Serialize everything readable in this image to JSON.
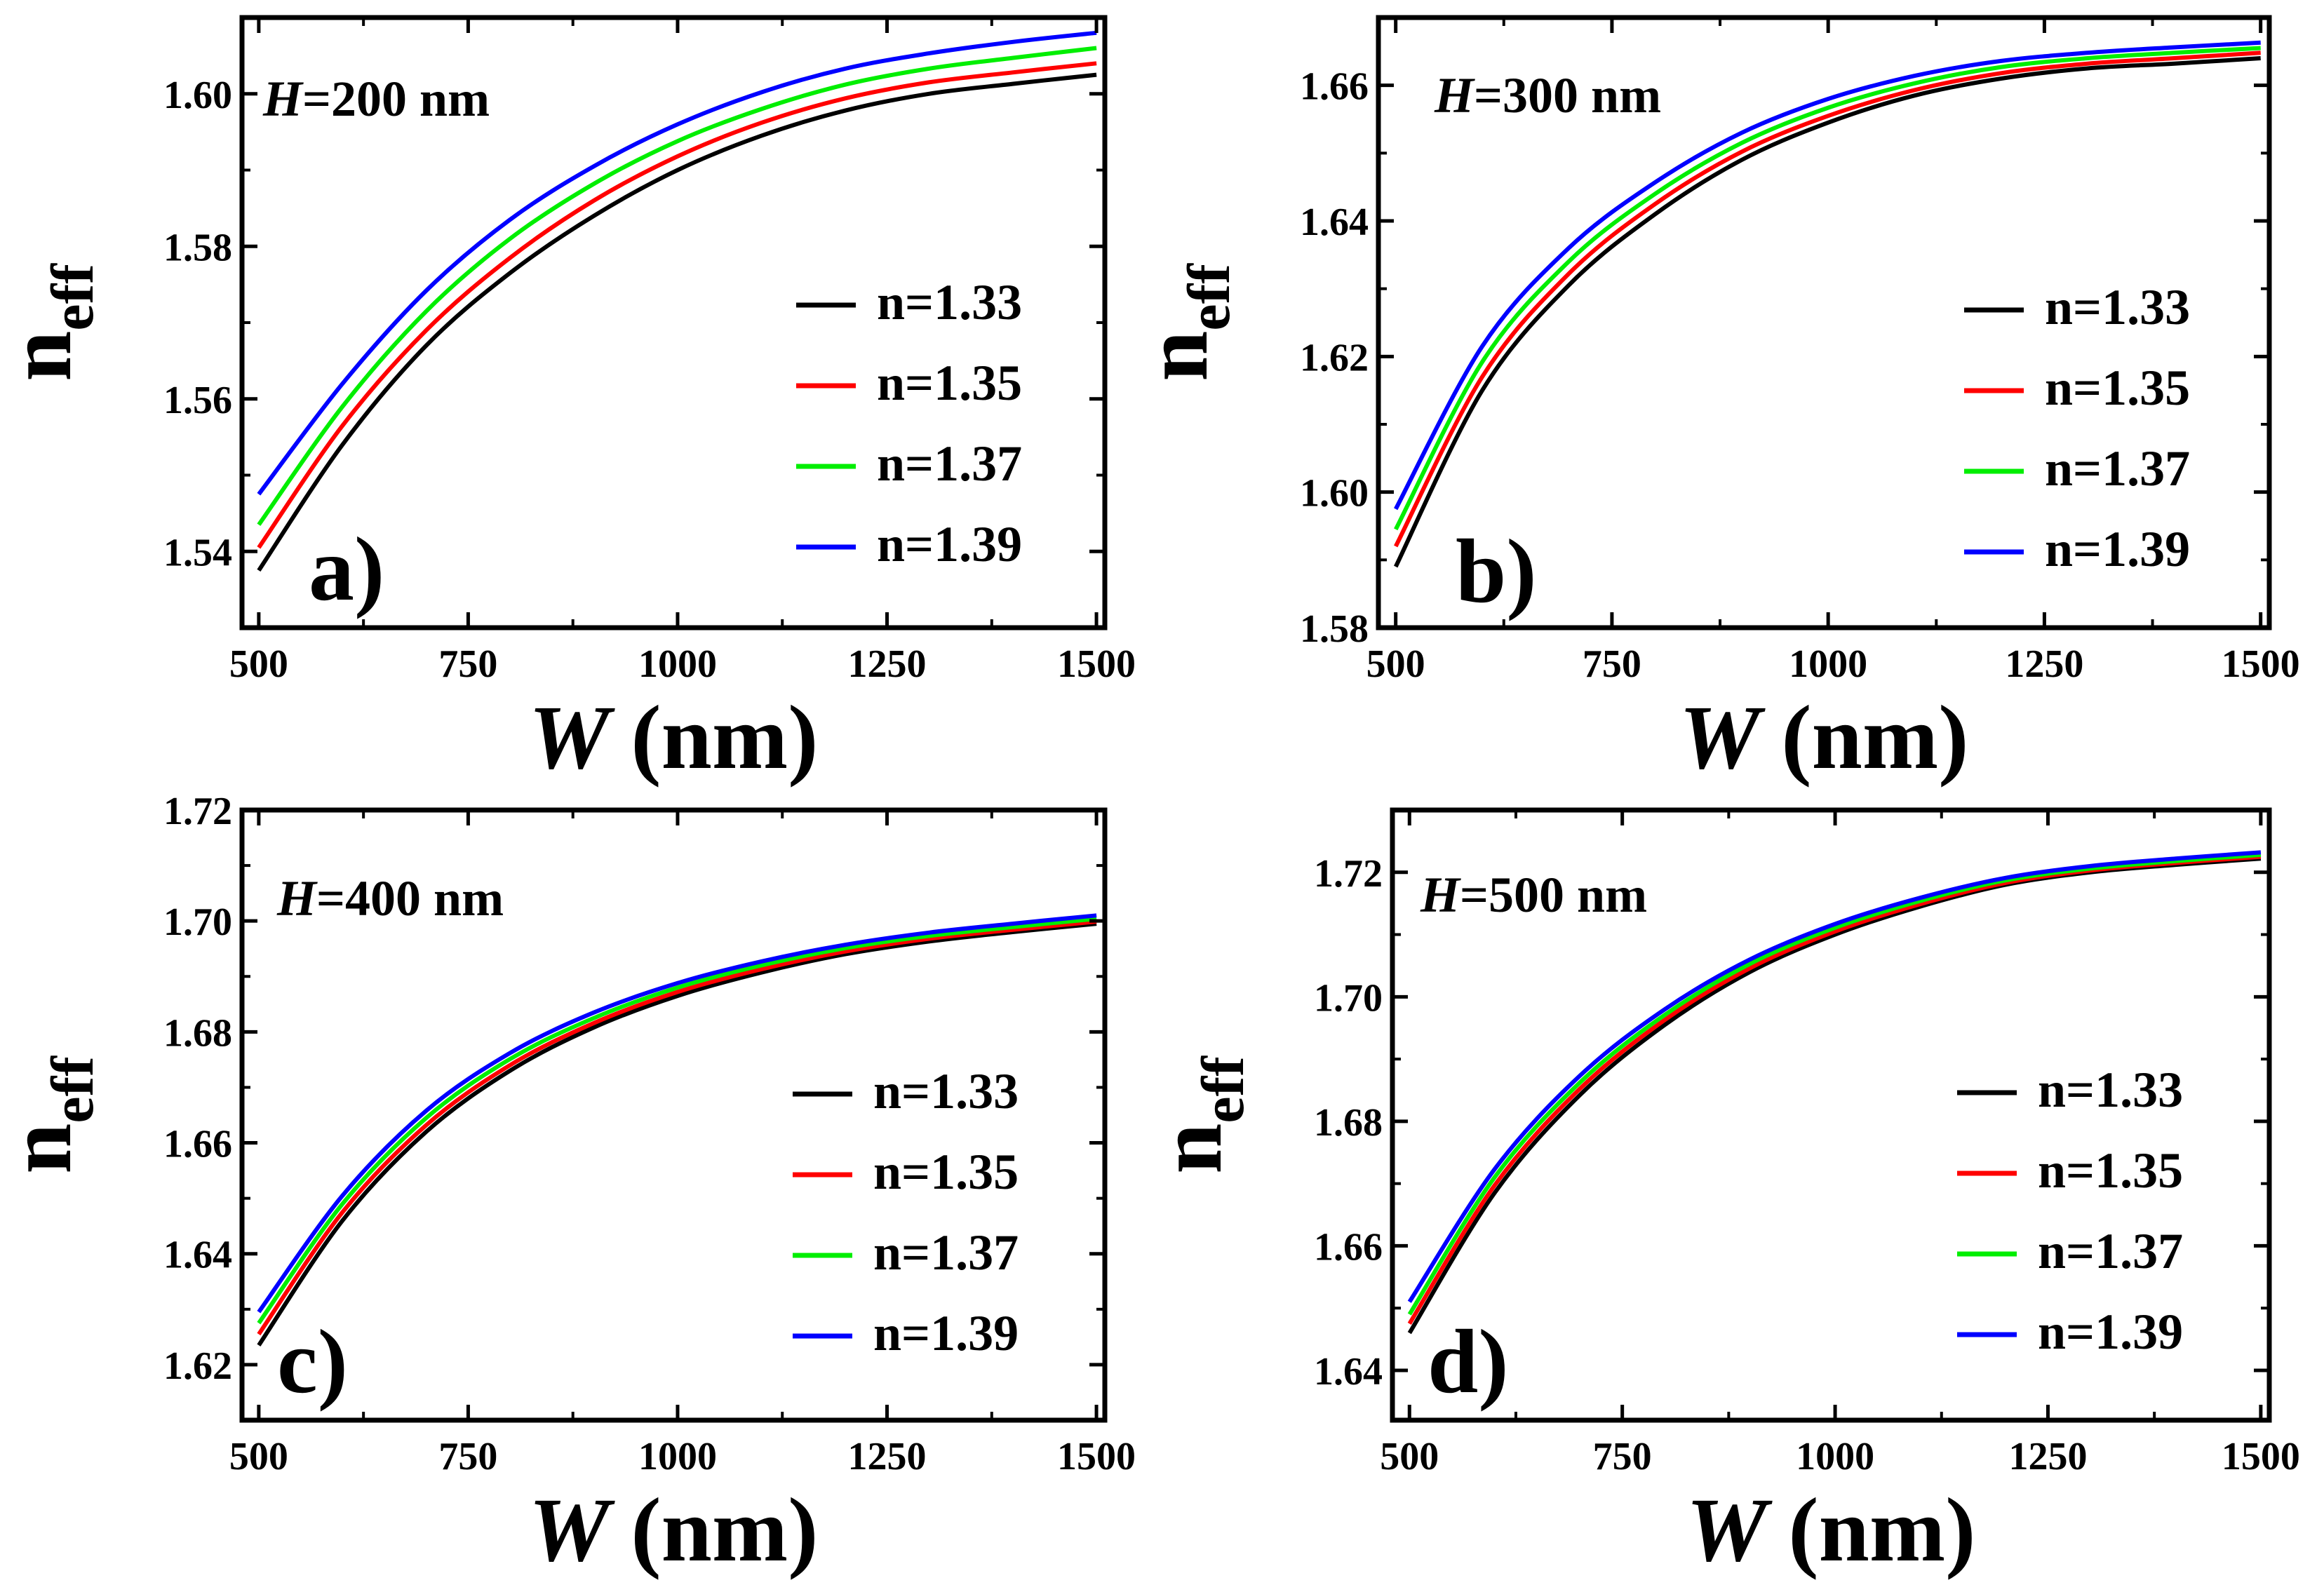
{
  "chart_data": [
    {
      "type": "line",
      "panel_label": "a)",
      "annotation": {
        "var": "H",
        "text": "=200 nm"
      },
      "xlabel": {
        "var": "W",
        "text": "(nm)"
      },
      "ylabel": {
        "main": "n",
        "sub": "eff"
      },
      "xlim": [
        480,
        1510
      ],
      "ylim": [
        1.53,
        1.61
      ],
      "xticks": [
        500,
        750,
        1000,
        1250,
        1500
      ],
      "xtick_labels": [
        "500",
        "750",
        "1000",
        "1250",
        "1500"
      ],
      "yticks": [
        1.54,
        1.56,
        1.58,
        1.6
      ],
      "ytick_labels": [
        "1.54",
        "1.56",
        "1.58",
        "1.60"
      ],
      "legend_position": "center-right",
      "x": [
        500,
        600,
        700,
        800,
        900,
        1000,
        1100,
        1200,
        1300,
        1400,
        1500
      ],
      "series": [
        {
          "name": "n=1.33",
          "color": "#000000",
          "values": [
            1.5375,
            1.554,
            1.567,
            1.5765,
            1.584,
            1.59,
            1.5945,
            1.5978,
            1.6,
            1.6013,
            1.6025
          ]
        },
        {
          "name": "n=1.35",
          "color": "#ff0000",
          "values": [
            1.5405,
            1.5565,
            1.569,
            1.5785,
            1.586,
            1.5918,
            1.5962,
            1.5994,
            1.6015,
            1.6028,
            1.604
          ]
        },
        {
          "name": "n=1.37",
          "color": "#00ee00",
          "values": [
            1.5435,
            1.559,
            1.5715,
            1.581,
            1.5882,
            1.5938,
            1.598,
            1.6012,
            1.6033,
            1.6047,
            1.606
          ]
        },
        {
          "name": "n=1.39",
          "color": "#0000ff",
          "values": [
            1.5475,
            1.562,
            1.5742,
            1.5835,
            1.5905,
            1.596,
            1.6002,
            1.6033,
            1.6053,
            1.6068,
            1.608
          ]
        }
      ]
    },
    {
      "type": "line",
      "panel_label": "b)",
      "annotation": {
        "var": "H",
        "text": "=300 nm"
      },
      "xlabel": {
        "var": "W",
        "text": "(nm)"
      },
      "ylabel": {
        "main": "n",
        "sub": "eff"
      },
      "xlim": [
        480,
        1510
      ],
      "ylim": [
        1.58,
        1.67
      ],
      "xticks": [
        500,
        750,
        1000,
        1250,
        1500
      ],
      "xtick_labels": [
        "500",
        "750",
        "1000",
        "1250",
        "1500"
      ],
      "yticks": [
        1.58,
        1.6,
        1.62,
        1.64,
        1.66
      ],
      "ytick_labels": [
        "1.58",
        "1.60",
        "1.62",
        "1.64",
        "1.66"
      ],
      "legend_position": "center-right",
      "x": [
        500,
        600,
        700,
        800,
        900,
        1000,
        1100,
        1200,
        1300,
        1400,
        1500
      ],
      "series": [
        {
          "name": "n=1.33",
          "color": "#000000",
          "values": [
            1.589,
            1.615,
            1.6305,
            1.641,
            1.649,
            1.6545,
            1.6585,
            1.661,
            1.6625,
            1.6632,
            1.664
          ]
        },
        {
          "name": "n=1.35",
          "color": "#ff0000",
          "values": [
            1.592,
            1.617,
            1.6322,
            1.6425,
            1.6502,
            1.6555,
            1.6593,
            1.6618,
            1.6632,
            1.664,
            1.6648
          ]
        },
        {
          "name": "n=1.37",
          "color": "#00ee00",
          "values": [
            1.5945,
            1.6192,
            1.634,
            1.644,
            1.6515,
            1.6567,
            1.6603,
            1.6627,
            1.664,
            1.6648,
            1.6655
          ]
        },
        {
          "name": "n=1.39",
          "color": "#0000ff",
          "values": [
            1.5975,
            1.6215,
            1.636,
            1.6457,
            1.653,
            1.658,
            1.6614,
            1.6636,
            1.6648,
            1.6656,
            1.6663
          ]
        }
      ]
    },
    {
      "type": "line",
      "panel_label": "c)",
      "annotation": {
        "var": "H",
        "text": "=400 nm"
      },
      "xlabel": {
        "var": "W",
        "text": "(nm)"
      },
      "ylabel": {
        "main": "n",
        "sub": "eff"
      },
      "xlim": [
        480,
        1510
      ],
      "ylim": [
        1.61,
        1.72
      ],
      "xticks": [
        500,
        750,
        1000,
        1250,
        1500
      ],
      "xtick_labels": [
        "500",
        "750",
        "1000",
        "1250",
        "1500"
      ],
      "yticks": [
        1.62,
        1.64,
        1.66,
        1.68,
        1.7,
        1.72
      ],
      "ytick_labels": [
        "1.62",
        "1.64",
        "1.66",
        "1.68",
        "1.70",
        "1.72"
      ],
      "legend_position": "center-right",
      "x": [
        500,
        600,
        700,
        800,
        900,
        1000,
        1100,
        1200,
        1300,
        1400,
        1500
      ],
      "series": [
        {
          "name": "n=1.33",
          "color": "#000000",
          "values": [
            1.6235,
            1.646,
            1.662,
            1.673,
            1.6808,
            1.6865,
            1.6907,
            1.694,
            1.6963,
            1.698,
            1.6995
          ]
        },
        {
          "name": "n=1.35",
          "color": "#ff0000",
          "values": [
            1.6255,
            1.6475,
            1.6632,
            1.674,
            1.6816,
            1.6872,
            1.6913,
            1.6945,
            1.6968,
            1.6984,
            1.6999
          ]
        },
        {
          "name": "n=1.37",
          "color": "#00ee00",
          "values": [
            1.6275,
            1.649,
            1.6645,
            1.6751,
            1.6825,
            1.688,
            1.692,
            1.6951,
            1.6973,
            1.6989,
            1.7004
          ]
        },
        {
          "name": "n=1.39",
          "color": "#0000ff",
          "values": [
            1.6295,
            1.6505,
            1.6658,
            1.6762,
            1.6835,
            1.6888,
            1.6927,
            1.6957,
            1.6979,
            1.6995,
            1.701
          ]
        }
      ]
    },
    {
      "type": "line",
      "panel_label": "d)",
      "annotation": {
        "var": "H",
        "text": "=500 nm"
      },
      "xlabel": {
        "var": "W",
        "text": "(nm)"
      },
      "ylabel": {
        "main": "n",
        "sub": "eff"
      },
      "xlim": [
        480,
        1510
      ],
      "ylim": [
        1.632,
        1.73
      ],
      "xticks": [
        500,
        750,
        1000,
        1250,
        1500
      ],
      "xtick_labels": [
        "500",
        "750",
        "1000",
        "1250",
        "1500"
      ],
      "yticks": [
        1.64,
        1.66,
        1.68,
        1.7,
        1.72
      ],
      "ytick_labels": [
        "1.64",
        "1.66",
        "1.68",
        "1.70",
        "1.72"
      ],
      "legend_position": "center-right",
      "x": [
        500,
        600,
        700,
        800,
        900,
        1000,
        1100,
        1200,
        1300,
        1400,
        1500
      ],
      "series": [
        {
          "name": "n=1.33",
          "color": "#000000",
          "values": [
            1.646,
            1.6685,
            1.6842,
            1.6955,
            1.704,
            1.71,
            1.7145,
            1.718,
            1.72,
            1.7212,
            1.7222
          ]
        },
        {
          "name": "n=1.35",
          "color": "#ff0000",
          "values": [
            1.6475,
            1.6697,
            1.6852,
            1.6963,
            1.7046,
            1.7105,
            1.7149,
            1.7183,
            1.7203,
            1.7215,
            1.7225
          ]
        },
        {
          "name": "n=1.37",
          "color": "#00ee00",
          "values": [
            1.649,
            1.671,
            1.6862,
            1.6971,
            1.7053,
            1.7111,
            1.7154,
            1.7187,
            1.7206,
            1.7218,
            1.7228
          ]
        },
        {
          "name": "n=1.39",
          "color": "#0000ff",
          "values": [
            1.651,
            1.6723,
            1.6873,
            1.698,
            1.706,
            1.7117,
            1.7159,
            1.7191,
            1.721,
            1.7222,
            1.7232
          ]
        }
      ]
    }
  ]
}
